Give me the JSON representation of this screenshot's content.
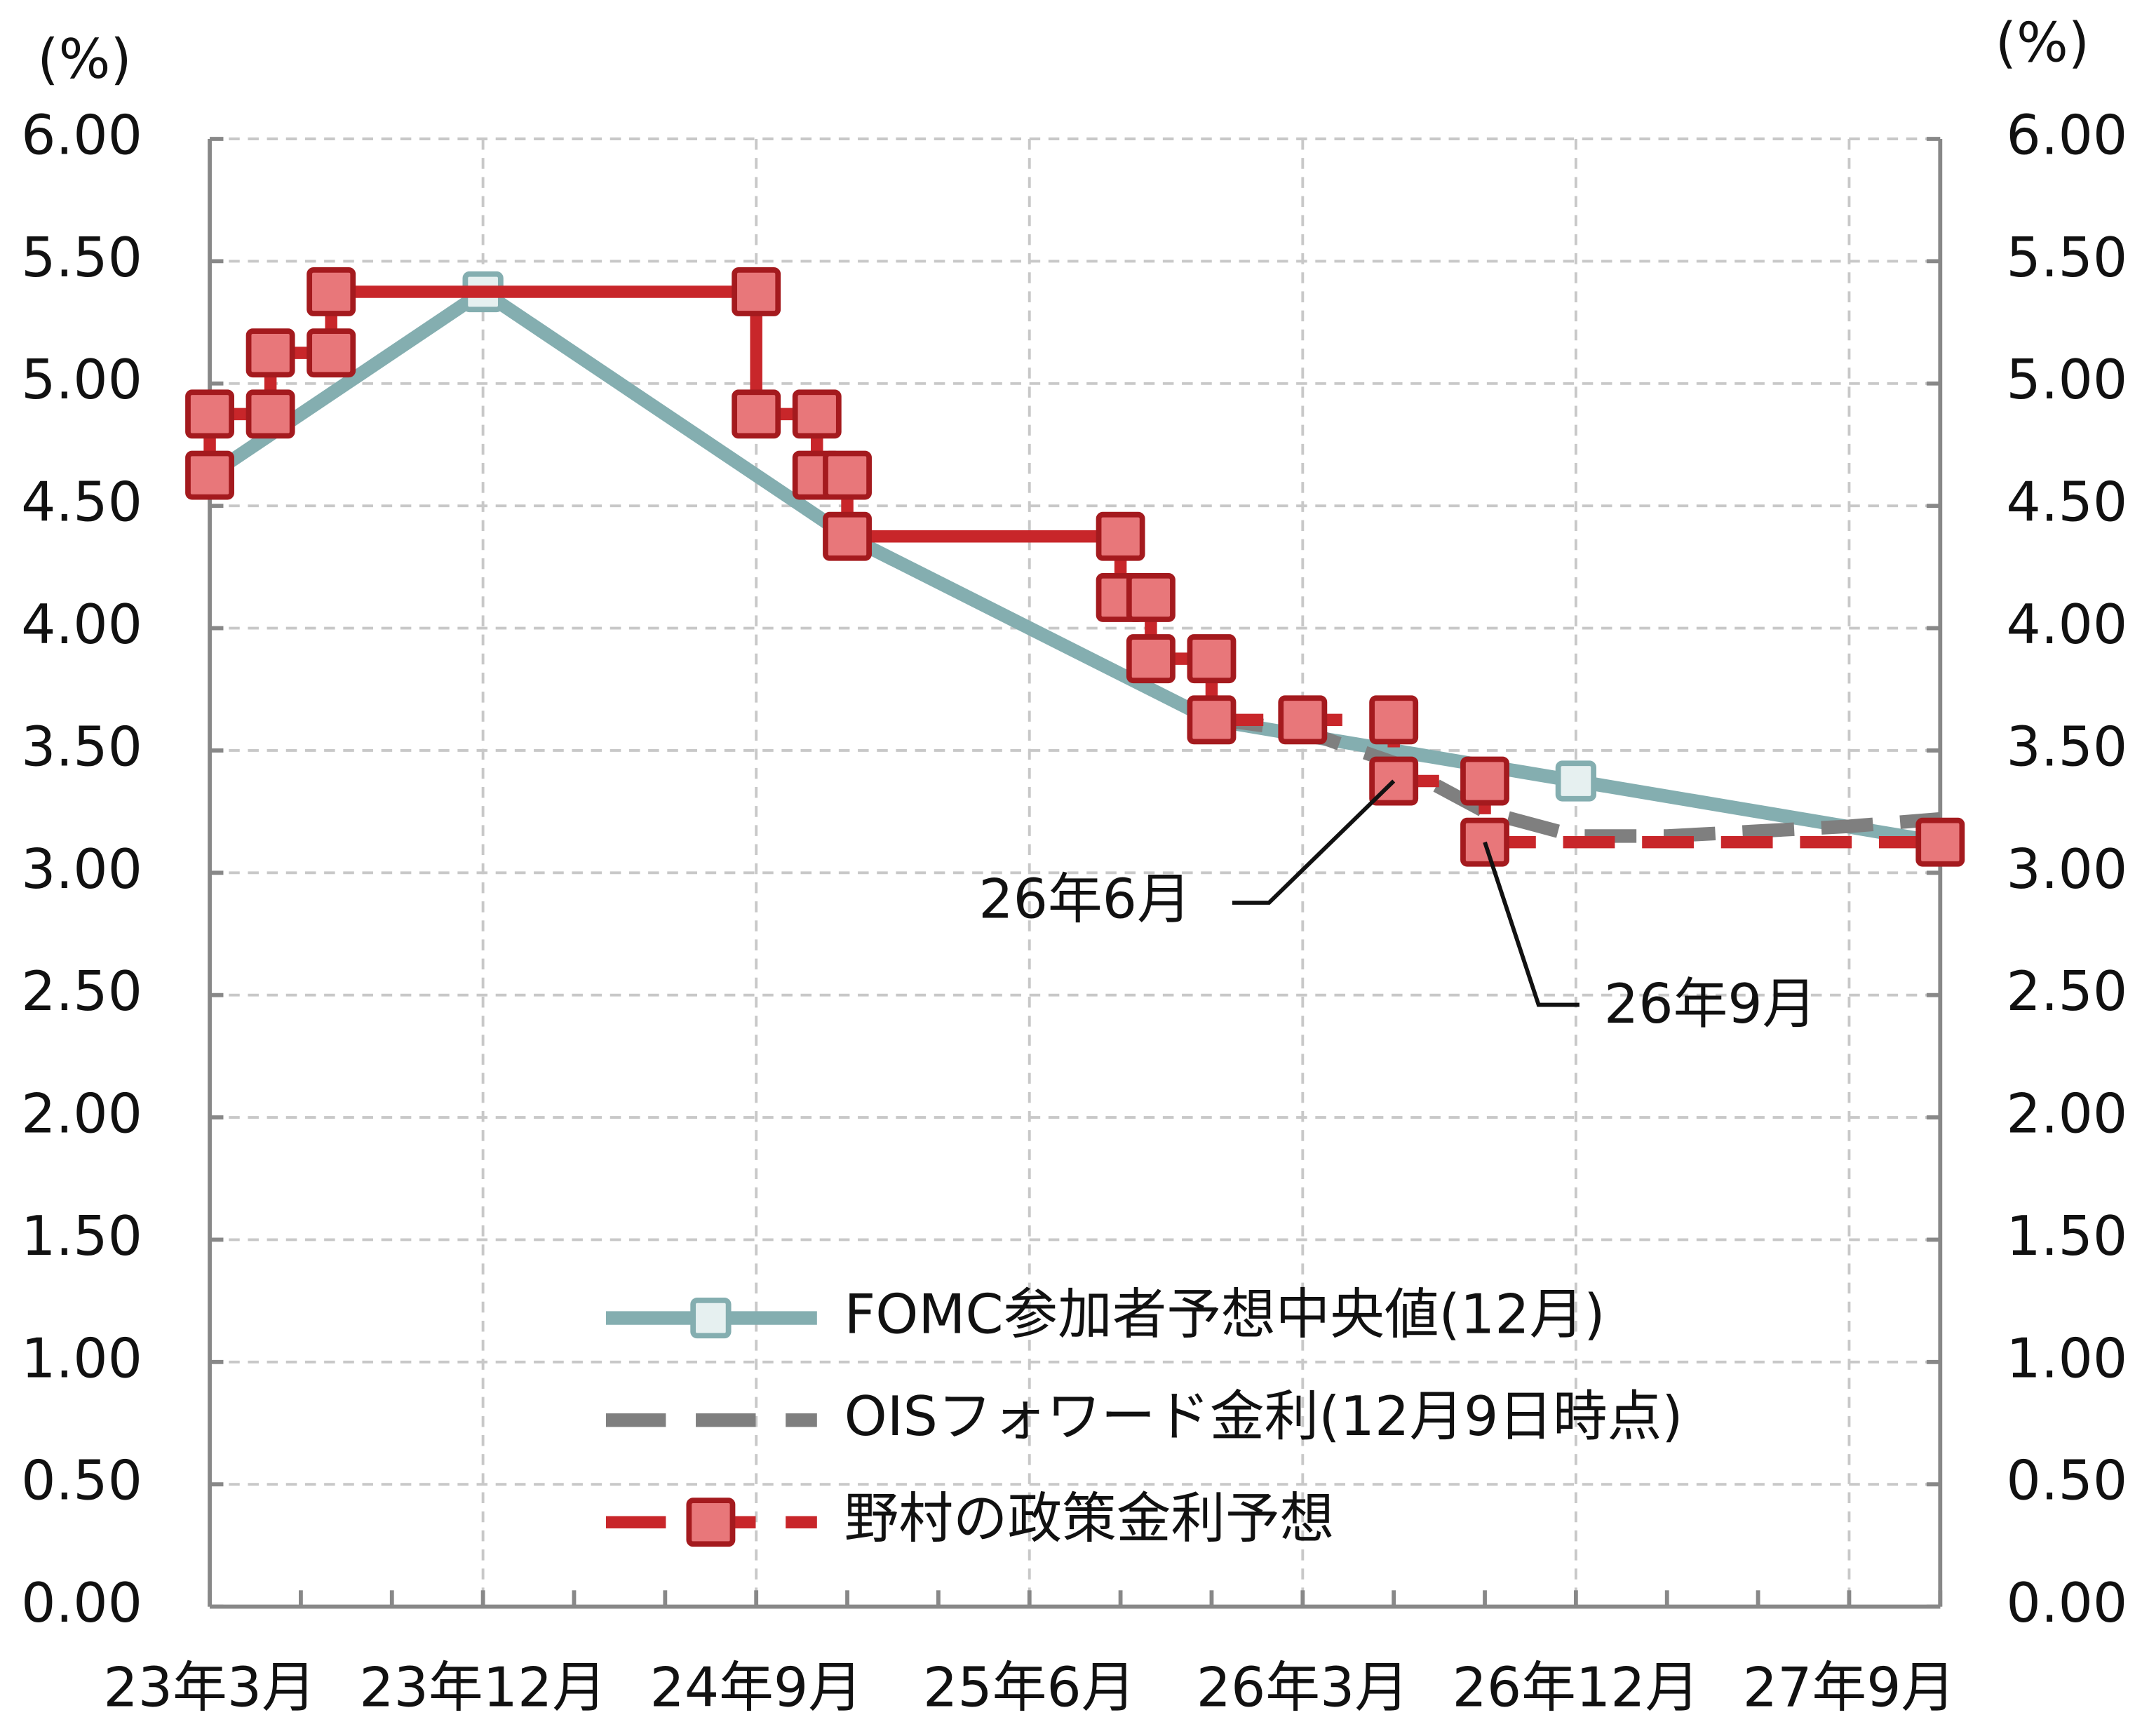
{
  "chart_data": {
    "type": "line",
    "ylabel": "(%)",
    "y2label": "(%)",
    "xlim": [
      "2023-03",
      "2027-12"
    ],
    "xticks": [
      {
        "value": "2023-03",
        "label": "23年3月"
      },
      {
        "value": "2023-06",
        "label": null
      },
      {
        "value": "2023-09",
        "label": null
      },
      {
        "value": "2023-12",
        "label": "23年12月"
      },
      {
        "value": "2024-03",
        "label": null
      },
      {
        "value": "2024-06",
        "label": null
      },
      {
        "value": "2024-09",
        "label": "24年9月"
      },
      {
        "value": "2024-12",
        "label": null
      },
      {
        "value": "2025-03",
        "label": null
      },
      {
        "value": "2025-06",
        "label": "25年6月"
      },
      {
        "value": "2025-09",
        "label": null
      },
      {
        "value": "2025-12",
        "label": null
      },
      {
        "value": "2026-03",
        "label": "26年3月"
      },
      {
        "value": "2026-06",
        "label": null
      },
      {
        "value": "2026-09",
        "label": null
      },
      {
        "value": "2026-12",
        "label": "26年12月"
      },
      {
        "value": "2027-03",
        "label": null
      },
      {
        "value": "2027-06",
        "label": null
      },
      {
        "value": "2027-09",
        "label": "27年9月"
      },
      {
        "value": "2027-12",
        "label": null
      }
    ],
    "ylim": [
      0,
      6
    ],
    "yticks": [
      {
        "value": 0,
        "label": "0.00"
      },
      {
        "value": 0.5,
        "label": "0.50"
      },
      {
        "value": 1,
        "label": "1.00"
      },
      {
        "value": 1.5,
        "label": "1.50"
      },
      {
        "value": 2,
        "label": "2.00"
      },
      {
        "value": 2.5,
        "label": "2.50"
      },
      {
        "value": 3,
        "label": "3.00"
      },
      {
        "value": 3.5,
        "label": "3.50"
      },
      {
        "value": 4,
        "label": "4.00"
      },
      {
        "value": 4.5,
        "label": "4.50"
      },
      {
        "value": 5,
        "label": "5.00"
      },
      {
        "value": 5.5,
        "label": "5.50"
      },
      {
        "value": 6,
        "label": "6.00"
      }
    ],
    "y2lim": [
      0,
      6
    ],
    "y2ticks": [
      {
        "value": 0,
        "label": "0.00"
      },
      {
        "value": 0.5,
        "label": "0.50"
      },
      {
        "value": 1,
        "label": "1.00"
      },
      {
        "value": 1.5,
        "label": "1.50"
      },
      {
        "value": 2,
        "label": "2.00"
      },
      {
        "value": 2.5,
        "label": "2.50"
      },
      {
        "value": 3,
        "label": "3.00"
      },
      {
        "value": 3.5,
        "label": "3.50"
      },
      {
        "value": 4,
        "label": "4.00"
      },
      {
        "value": 4.5,
        "label": "4.50"
      },
      {
        "value": 5,
        "label": "5.00"
      },
      {
        "value": 5.5,
        "label": "5.50"
      },
      {
        "value": 6,
        "label": "6.00"
      }
    ],
    "grid": true,
    "legend": "bottom",
    "series": [
      {
        "name": "FOMC参加者予想中央値(12月)",
        "color": "#84aeb0",
        "marker_fill": "#e6f0f0",
        "markers": true,
        "dash": false,
        "x": [
          "2023-03",
          "2023-12",
          "2024-12",
          "2025-12",
          "2026-12",
          "2027-12"
        ],
        "values": [
          4.625,
          5.375,
          4.375,
          3.625,
          3.375,
          3.125
        ]
      },
      {
        "name": "OISフォワード金利(12月9日時点)",
        "color": "#7f7f7f",
        "markers": false,
        "dash": true,
        "x": [
          "2025-12",
          "2026-03",
          "2026-06",
          "2026-09",
          "2026-12",
          "2027-03",
          "2027-06",
          "2027-09",
          "2027-12"
        ],
        "values": [
          3.63,
          3.58,
          3.45,
          3.25,
          3.15,
          3.15,
          3.17,
          3.19,
          3.22
        ]
      },
      {
        "name": "野村の政策金利予想",
        "color": "#c8262a",
        "marker_fill": "#e8777a",
        "marker_stroke": "#a41a1e",
        "markers": true,
        "dash": true,
        "dashed_from": "2025-12",
        "x": [
          "2023-03",
          "2023-03",
          "2023-05",
          "2023-05",
          "2023-07",
          "2023-07",
          "2024-09",
          "2024-09",
          "2024-11",
          "2024-11",
          "2024-12",
          "2024-12",
          "2025-09",
          "2025-09",
          "2025-10",
          "2025-10",
          "2025-12",
          "2025-12",
          "2026-03",
          "2026-06",
          "2026-06",
          "2026-09",
          "2026-09",
          "2027-12"
        ],
        "values": [
          4.625,
          4.875,
          4.875,
          5.125,
          5.125,
          5.375,
          5.375,
          4.875,
          4.875,
          4.625,
          4.625,
          4.375,
          4.375,
          4.125,
          4.125,
          3.875,
          3.875,
          3.625,
          3.625,
          3.625,
          3.375,
          3.375,
          3.125,
          3.125
        ]
      }
    ],
    "annotations": [
      {
        "text": "26年6月",
        "x": "2026-06",
        "y": 3.375
      },
      {
        "text": "26年9月",
        "x": "2026-09",
        "y": 3.125
      }
    ]
  }
}
